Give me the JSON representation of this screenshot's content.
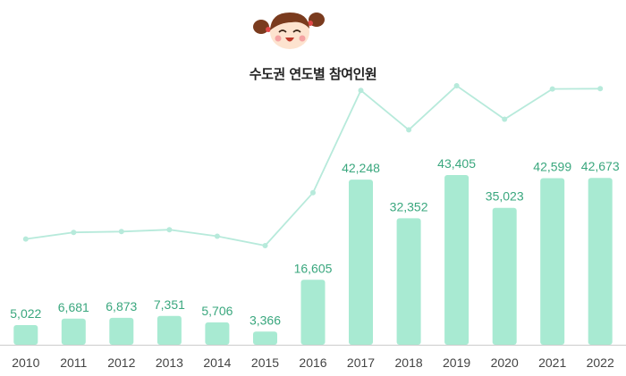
{
  "chart_data": {
    "type": "bar",
    "title": "수도권 연도별 참여인원",
    "categories": [
      "2010",
      "2011",
      "2012",
      "2013",
      "2014",
      "2015",
      "2016",
      "2017",
      "2018",
      "2019",
      "2020",
      "2021",
      "2022"
    ],
    "values": [
      5022,
      6681,
      6873,
      7351,
      5706,
      3366,
      16605,
      42248,
      32352,
      43405,
      35023,
      42599,
      42673
    ],
    "value_labels": [
      "5,022",
      "6,681",
      "6,873",
      "7,351",
      "5,706",
      "3,366",
      "16,605",
      "42,248",
      "32,352",
      "43,405",
      "35,023",
      "42,599",
      "42,673"
    ],
    "overlay_line": {
      "type": "line",
      "follows": "values"
    },
    "colors": {
      "bar": "#a8ead2",
      "line": "#b7eadb",
      "label": "#3aa77e",
      "axis": "#cccccc",
      "tick": "#444444",
      "title": "#222222"
    },
    "grid": false,
    "mascot_icon": "girl-face-icon"
  }
}
